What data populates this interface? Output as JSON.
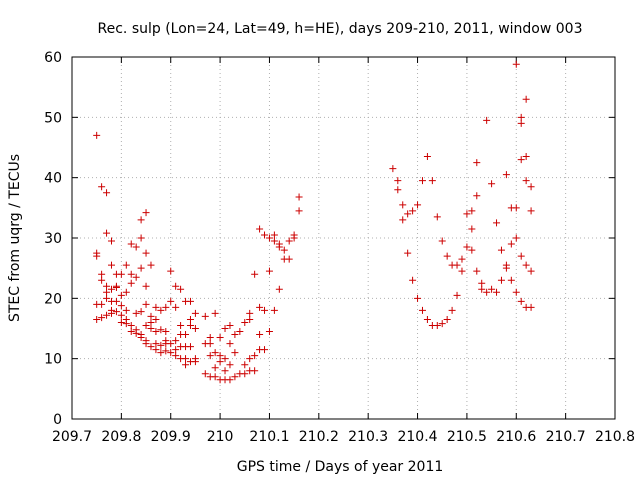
{
  "chart_data": {
    "type": "scatter",
    "title": "Rec. sulp (Lon=24, Lat=49, h=HE), days 209-210, 2011, window 003",
    "xlabel": "GPS time / Days of year 2011",
    "ylabel": "STEC from uqrg / TECUs",
    "xlim": [
      209.7,
      210.8
    ],
    "ylim": [
      0,
      60
    ],
    "xticks": [
      "209.7",
      "209.8",
      "209.9",
      "210",
      "210.1",
      "210.2",
      "210.3",
      "210.4",
      "210.5",
      "210.6",
      "210.7",
      "210.8"
    ],
    "yticks": [
      "0",
      "10",
      "20",
      "30",
      "40",
      "50",
      "60"
    ],
    "grid": true,
    "marker": "+",
    "color": "#cc0000",
    "points": [
      [
        209.75,
        47.0
      ],
      [
        209.75,
        27.5
      ],
      [
        209.75,
        27.0
      ],
      [
        209.75,
        19.0
      ],
      [
        209.75,
        16.5
      ],
      [
        209.76,
        38.5
      ],
      [
        209.76,
        24.0
      ],
      [
        209.76,
        23.0
      ],
      [
        209.76,
        19.0
      ],
      [
        209.76,
        16.8
      ],
      [
        209.77,
        37.5
      ],
      [
        209.77,
        30.8
      ],
      [
        209.77,
        22.0
      ],
      [
        209.77,
        21.0
      ],
      [
        209.77,
        20.0
      ],
      [
        209.77,
        17.2
      ],
      [
        209.78,
        29.5
      ],
      [
        209.78,
        25.5
      ],
      [
        209.78,
        21.5
      ],
      [
        209.78,
        19.5
      ],
      [
        209.78,
        18.0
      ],
      [
        209.78,
        17.5
      ],
      [
        209.79,
        24.0
      ],
      [
        209.79,
        22.0
      ],
      [
        209.79,
        21.8
      ],
      [
        209.79,
        19.5
      ],
      [
        209.79,
        17.8
      ],
      [
        209.8,
        24.0
      ],
      [
        209.8,
        20.5
      ],
      [
        209.8,
        18.8
      ],
      [
        209.8,
        17.2
      ],
      [
        209.8,
        16.0
      ],
      [
        209.81,
        25.5
      ],
      [
        209.81,
        21.0
      ],
      [
        209.81,
        18.0
      ],
      [
        209.81,
        16.5
      ],
      [
        209.81,
        15.8
      ],
      [
        209.82,
        29.0
      ],
      [
        209.82,
        24.0
      ],
      [
        209.82,
        22.5
      ],
      [
        209.82,
        15.5
      ],
      [
        209.82,
        14.5
      ],
      [
        209.83,
        28.5
      ],
      [
        209.83,
        23.5
      ],
      [
        209.83,
        17.5
      ],
      [
        209.83,
        14.8
      ],
      [
        209.83,
        14.2
      ],
      [
        209.84,
        33.0
      ],
      [
        209.84,
        30.0
      ],
      [
        209.84,
        25.0
      ],
      [
        209.84,
        17.8
      ],
      [
        209.84,
        14.0
      ],
      [
        209.84,
        13.5
      ],
      [
        209.85,
        34.2
      ],
      [
        209.85,
        27.5
      ],
      [
        209.85,
        22.0
      ],
      [
        209.85,
        19.0
      ],
      [
        209.85,
        15.5
      ],
      [
        209.85,
        13.0
      ],
      [
        209.85,
        12.5
      ],
      [
        209.86,
        25.5
      ],
      [
        209.86,
        17.0
      ],
      [
        209.86,
        16.0
      ],
      [
        209.86,
        15.0
      ],
      [
        209.86,
        12.0
      ],
      [
        209.87,
        18.5
      ],
      [
        209.87,
        16.5
      ],
      [
        209.87,
        14.5
      ],
      [
        209.87,
        12.5
      ],
      [
        209.87,
        11.5
      ],
      [
        209.88,
        18.0
      ],
      [
        209.88,
        14.8
      ],
      [
        209.88,
        12.2
      ],
      [
        209.88,
        11.0
      ],
      [
        209.89,
        18.5
      ],
      [
        209.89,
        14.5
      ],
      [
        209.89,
        13.0
      ],
      [
        209.89,
        12.5
      ],
      [
        209.89,
        11.3
      ],
      [
        209.9,
        24.5
      ],
      [
        209.9,
        19.5
      ],
      [
        209.9,
        12.5
      ],
      [
        209.9,
        11.0
      ],
      [
        209.91,
        22.0
      ],
      [
        209.91,
        18.5
      ],
      [
        209.91,
        13.0
      ],
      [
        209.91,
        11.5
      ],
      [
        209.91,
        10.5
      ],
      [
        209.92,
        21.5
      ],
      [
        209.92,
        15.5
      ],
      [
        209.92,
        14.0
      ],
      [
        209.92,
        12.0
      ],
      [
        209.92,
        10.0
      ],
      [
        209.93,
        19.5
      ],
      [
        209.93,
        14.0
      ],
      [
        209.93,
        12.0
      ],
      [
        209.93,
        10.0
      ],
      [
        209.93,
        9.0
      ],
      [
        209.94,
        19.5
      ],
      [
        209.94,
        16.5
      ],
      [
        209.94,
        15.5
      ],
      [
        209.94,
        12.0
      ],
      [
        209.94,
        9.5
      ],
      [
        209.95,
        17.5
      ],
      [
        209.95,
        15.0
      ],
      [
        209.95,
        10.0
      ],
      [
        209.95,
        9.5
      ],
      [
        209.97,
        17.0
      ],
      [
        209.97,
        12.5
      ],
      [
        209.97,
        7.5
      ],
      [
        209.98,
        13.5
      ],
      [
        209.98,
        12.5
      ],
      [
        209.98,
        10.5
      ],
      [
        209.98,
        7.0
      ],
      [
        209.99,
        17.5
      ],
      [
        209.99,
        11.0
      ],
      [
        209.99,
        8.5
      ],
      [
        209.99,
        7.0
      ],
      [
        210.0,
        13.5
      ],
      [
        210.0,
        10.5
      ],
      [
        210.0,
        9.5
      ],
      [
        210.0,
        6.5
      ],
      [
        210.01,
        15.0
      ],
      [
        210.01,
        10.0
      ],
      [
        210.01,
        8.0
      ],
      [
        210.01,
        6.5
      ],
      [
        210.02,
        15.5
      ],
      [
        210.02,
        12.5
      ],
      [
        210.02,
        9.0
      ],
      [
        210.02,
        6.5
      ],
      [
        210.03,
        14.0
      ],
      [
        210.03,
        11.0
      ],
      [
        210.03,
        7.0
      ],
      [
        210.04,
        14.5
      ],
      [
        210.04,
        7.5
      ],
      [
        210.05,
        16.0
      ],
      [
        210.05,
        9.0
      ],
      [
        210.05,
        7.5
      ],
      [
        210.06,
        17.5
      ],
      [
        210.06,
        16.5
      ],
      [
        210.06,
        10.0
      ],
      [
        210.06,
        8.0
      ],
      [
        210.07,
        24.0
      ],
      [
        210.07,
        10.5
      ],
      [
        210.07,
        8.0
      ],
      [
        210.08,
        31.5
      ],
      [
        210.08,
        18.5
      ],
      [
        210.08,
        14.0
      ],
      [
        210.08,
        11.5
      ],
      [
        210.09,
        30.5
      ],
      [
        210.09,
        18.0
      ],
      [
        210.09,
        11.5
      ],
      [
        210.1,
        30.0
      ],
      [
        210.1,
        24.5
      ],
      [
        210.1,
        14.5
      ],
      [
        210.11,
        30.5
      ],
      [
        210.11,
        29.5
      ],
      [
        210.11,
        18.0
      ],
      [
        210.12,
        29.0
      ],
      [
        210.12,
        28.5
      ],
      [
        210.12,
        21.5
      ],
      [
        210.13,
        28.0
      ],
      [
        210.13,
        26.5
      ],
      [
        210.14,
        29.5
      ],
      [
        210.14,
        26.5
      ],
      [
        210.15,
        30.5
      ],
      [
        210.15,
        30.0
      ],
      [
        210.16,
        36.8
      ],
      [
        210.16,
        34.5
      ],
      [
        210.35,
        41.5
      ],
      [
        210.36,
        39.5
      ],
      [
        210.36,
        38.0
      ],
      [
        210.37,
        35.5
      ],
      [
        210.37,
        33.0
      ],
      [
        210.38,
        34.0
      ],
      [
        210.38,
        27.5
      ],
      [
        210.39,
        34.5
      ],
      [
        210.39,
        23.0
      ],
      [
        210.4,
        35.5
      ],
      [
        210.4,
        20.0
      ],
      [
        210.41,
        39.5
      ],
      [
        210.41,
        18.0
      ],
      [
        210.42,
        43.5
      ],
      [
        210.42,
        16.5
      ],
      [
        210.43,
        39.5
      ],
      [
        210.43,
        15.5
      ],
      [
        210.44,
        33.5
      ],
      [
        210.44,
        15.5
      ],
      [
        210.45,
        29.5
      ],
      [
        210.45,
        15.8
      ],
      [
        210.46,
        27.0
      ],
      [
        210.46,
        16.5
      ],
      [
        210.47,
        25.5
      ],
      [
        210.47,
        18.0
      ],
      [
        210.48,
        25.5
      ],
      [
        210.48,
        20.5
      ],
      [
        210.49,
        24.5
      ],
      [
        210.49,
        26.5
      ],
      [
        210.5,
        28.5
      ],
      [
        210.5,
        34.0
      ],
      [
        210.51,
        28.0
      ],
      [
        210.51,
        31.5
      ],
      [
        210.51,
        34.5
      ],
      [
        210.52,
        42.5
      ],
      [
        210.52,
        37.0
      ],
      [
        210.52,
        24.5
      ],
      [
        210.53,
        22.5
      ],
      [
        210.53,
        21.5
      ],
      [
        210.54,
        49.5
      ],
      [
        210.54,
        21.0
      ],
      [
        210.55,
        39.0
      ],
      [
        210.55,
        21.5
      ],
      [
        210.56,
        32.5
      ],
      [
        210.56,
        21.0
      ],
      [
        210.57,
        28.0
      ],
      [
        210.57,
        23.0
      ],
      [
        210.58,
        40.5
      ],
      [
        210.58,
        25.5
      ],
      [
        210.58,
        25.0
      ],
      [
        210.59,
        35.0
      ],
      [
        210.59,
        29.0
      ],
      [
        210.59,
        23.0
      ],
      [
        210.6,
        58.8
      ],
      [
        210.6,
        35.0
      ],
      [
        210.6,
        30.0
      ],
      [
        210.6,
        21.0
      ],
      [
        210.61,
        50.0
      ],
      [
        210.61,
        49.0
      ],
      [
        210.61,
        43.0
      ],
      [
        210.61,
        27.0
      ],
      [
        210.61,
        19.5
      ],
      [
        210.62,
        53.0
      ],
      [
        210.62,
        43.5
      ],
      [
        210.62,
        39.5
      ],
      [
        210.62,
        25.5
      ],
      [
        210.62,
        18.5
      ],
      [
        210.63,
        38.5
      ],
      [
        210.63,
        34.5
      ],
      [
        210.63,
        24.5
      ],
      [
        210.63,
        18.5
      ]
    ]
  }
}
